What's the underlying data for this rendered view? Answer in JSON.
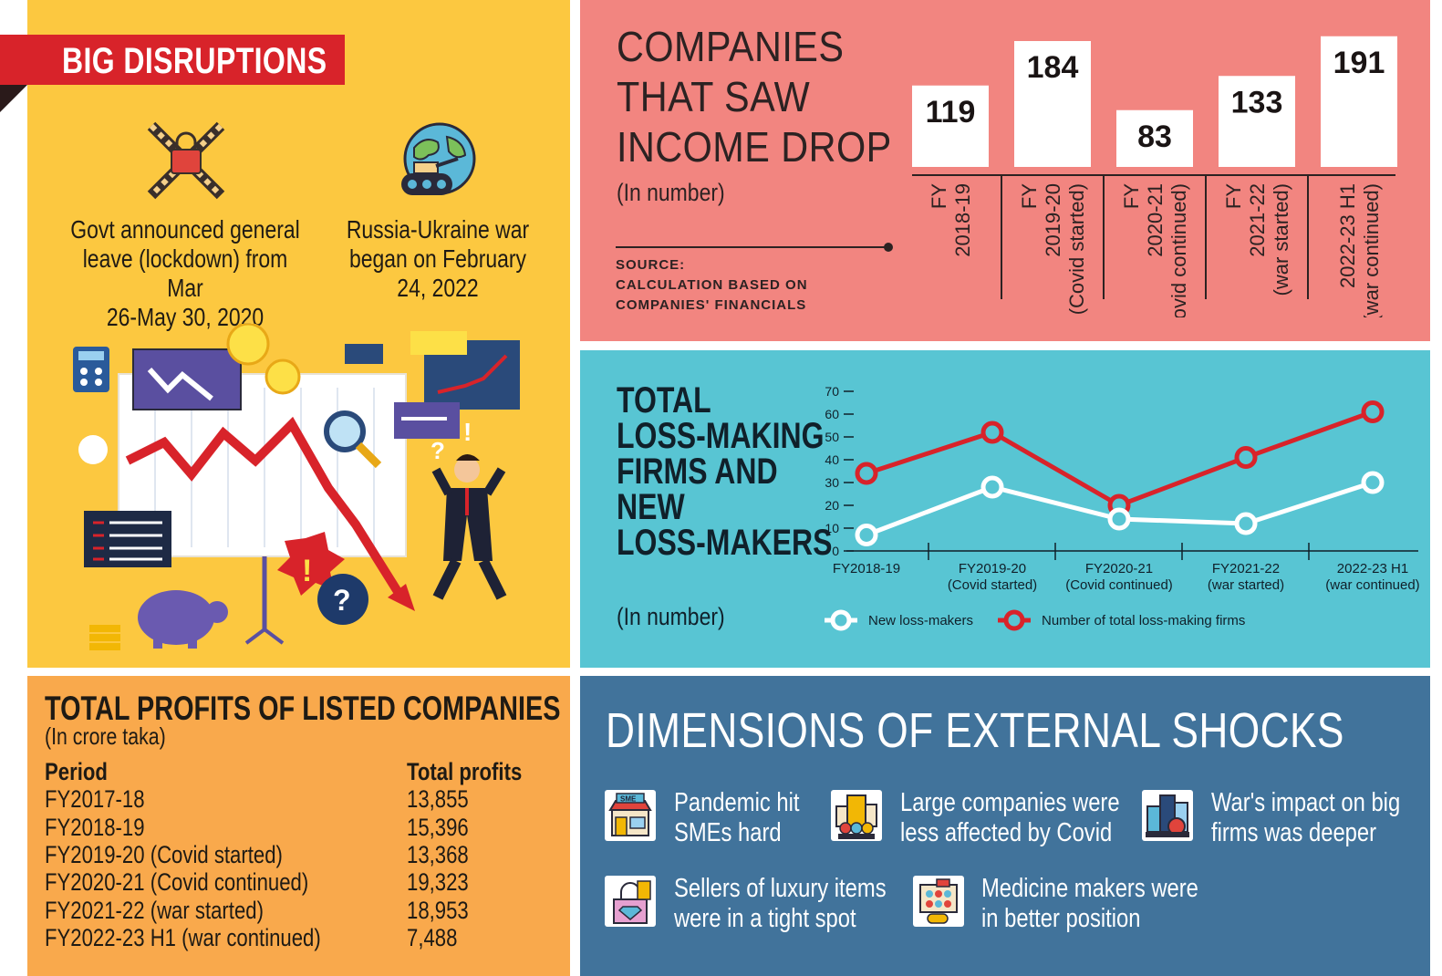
{
  "disruptions": {
    "banner": "BIG DISRUPTIONS",
    "lockdown_caption": [
      "Govt announced general",
      "leave (lockdown) from Mar",
      "26-May 30, 2020"
    ],
    "war_caption": [
      "Russia-Ukraine war",
      "began on February",
      "24, 2022"
    ],
    "icons": [
      "lockdown-icon",
      "war-globe-icon",
      "market-crash-illustration"
    ]
  },
  "income_drop": {
    "title": [
      "COMPANIES",
      "THAT SAW",
      "INCOME DROP"
    ],
    "unit": "(In number)",
    "source": [
      "SOURCE:",
      "CALCULATION BASED ON",
      "COMPANIES' FINANCIALS"
    ]
  },
  "loss_makers": {
    "title": [
      "TOTAL",
      "LOSS-MAKING",
      "FIRMS AND",
      "NEW",
      "LOSS-MAKERS"
    ],
    "unit": "(In number)"
  },
  "profits": {
    "title": "TOTAL PROFITS OF LISTED COMPANIES",
    "unit": "(In crore taka)",
    "headers": [
      "Period",
      "Total profits"
    ],
    "rows": [
      [
        "FY2017-18",
        "13,855"
      ],
      [
        "FY2018-19",
        "15,396"
      ],
      [
        "FY2019-20 (Covid started)",
        "13,368"
      ],
      [
        "FY2020-21 (Covid continued)",
        "19,323"
      ],
      [
        "FY2021-22 (war started)",
        "18,953"
      ],
      [
        "FY2022-23 H1 (war continued)",
        "7,488"
      ]
    ]
  },
  "shocks": {
    "title": "DIMENSIONS OF EXTERNAL SHOCKS",
    "items": [
      {
        "icon": "sme-shop-icon",
        "lines": [
          "Pandemic hit",
          "SMEs hard"
        ]
      },
      {
        "icon": "large-company-icon",
        "lines": [
          "Large companies were",
          "less affected by Covid"
        ]
      },
      {
        "icon": "war-big-firms-icon",
        "lines": [
          "War's impact on big",
          "firms was deeper"
        ]
      },
      {
        "icon": "luxury-items-icon",
        "lines": [
          "Sellers of luxury items",
          "were in a tight spot"
        ]
      },
      {
        "icon": "medicine-icon",
        "lines": [
          "Medicine makers were",
          "in better position"
        ]
      }
    ],
    "sme_label": "SME"
  },
  "colors": {
    "yellow": "#fcc840",
    "salmon": "#f28580",
    "cyan": "#58c5d3",
    "orange": "#f9a94c",
    "steel_blue": "#41739b",
    "red": "#d8232a",
    "white_series": "#ffffff"
  },
  "chart_data": [
    {
      "type": "bar",
      "categories": [
        [
          "FY",
          "2018-19"
        ],
        [
          "FY",
          "2019-20",
          "(Covid started)"
        ],
        [
          "FY",
          "2020-21",
          "(Covid continued)"
        ],
        [
          "FY",
          "2021-22",
          "(war started)"
        ],
        [
          "2022-23 H1",
          "(war continued)"
        ]
      ],
      "values": [
        119,
        184,
        83,
        133,
        191
      ],
      "data_labels": [
        "119",
        "184",
        "83",
        "133",
        "191"
      ],
      "title": "COMPANIES THAT SAW INCOME DROP",
      "ylabel": "(In number)",
      "ylim": [
        0,
        200
      ],
      "grid": false
    },
    {
      "type": "line",
      "categories": [
        [
          "FY2018-19"
        ],
        [
          "FY2019-20",
          "(Covid started)"
        ],
        [
          "FY2020-21",
          "(Covid continued)"
        ],
        [
          "FY2021-22",
          "(war started)"
        ],
        [
          "2022-23 H1",
          "(war continued)"
        ]
      ],
      "series": [
        {
          "name": "New loss-makers",
          "values": [
            7,
            28,
            14,
            12,
            30
          ],
          "color": "#ffffff"
        },
        {
          "name": "Number of total loss-making firms",
          "values": [
            34,
            52,
            20,
            41,
            61
          ],
          "color": "#d8232a"
        }
      ],
      "yticks": [
        "0",
        "10",
        "20",
        "30",
        "40",
        "50",
        "60",
        "70"
      ],
      "ylim": [
        0,
        70
      ],
      "legend": "bottom",
      "grid": false
    }
  ]
}
